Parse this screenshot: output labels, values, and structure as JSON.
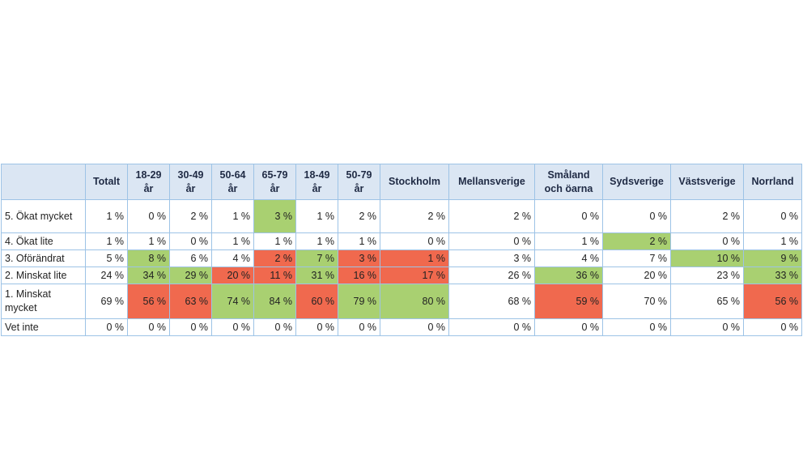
{
  "table": {
    "columns": [
      "Totalt",
      "18-29 år",
      "30-49 år",
      "50-64 år",
      "65-79 år",
      "18-49 år",
      "50-79 år",
      "Stockholm",
      "Mellansverige",
      "Småland och öarna",
      "Sydsverige",
      "Västsverige",
      "Norrland"
    ],
    "rows": [
      {
        "label": "5. Ökat mycket",
        "values": [
          "1 %",
          "0 %",
          "2 %",
          "1 %",
          "3 %",
          "1 %",
          "2 %",
          "2 %",
          "2 %",
          "0 %",
          "0 %",
          "2 %",
          "0 %"
        ],
        "highlights": [
          "",
          "",
          "",
          "",
          "green",
          "",
          "",
          "",
          "",
          "",
          "",
          "",
          ""
        ]
      },
      {
        "label": "4. Ökat lite",
        "values": [
          "1 %",
          "1 %",
          "0 %",
          "1 %",
          "1 %",
          "1 %",
          "1 %",
          "0 %",
          "0 %",
          "1 %",
          "2 %",
          "0 %",
          "1 %"
        ],
        "highlights": [
          "",
          "",
          "",
          "",
          "",
          "",
          "",
          "",
          "",
          "",
          "green",
          "",
          ""
        ]
      },
      {
        "label": "3. Oförändrat",
        "values": [
          "5 %",
          "8 %",
          "6 %",
          "4 %",
          "2 %",
          "7 %",
          "3 %",
          "1 %",
          "3 %",
          "4 %",
          "7 %",
          "10 %",
          "9 %"
        ],
        "highlights": [
          "",
          "green",
          "",
          "",
          "red",
          "green",
          "red",
          "red",
          "",
          "",
          "",
          "green",
          "green"
        ]
      },
      {
        "label": "2. Minskat lite",
        "values": [
          "24 %",
          "34 %",
          "29 %",
          "20 %",
          "11 %",
          "31 %",
          "16 %",
          "17 %",
          "26 %",
          "36 %",
          "20 %",
          "23 %",
          "33 %"
        ],
        "highlights": [
          "",
          "green",
          "green",
          "red",
          "red",
          "green",
          "red",
          "red",
          "",
          "green",
          "",
          "",
          "green"
        ]
      },
      {
        "label": "1. Minskat mycket",
        "values": [
          "69 %",
          "56 %",
          "63 %",
          "74 %",
          "84 %",
          "60 %",
          "79 %",
          "80 %",
          "68 %",
          "59 %",
          "70 %",
          "65 %",
          "56 %"
        ],
        "highlights": [
          "",
          "red",
          "red",
          "green",
          "green",
          "red",
          "green",
          "green",
          "",
          "red",
          "",
          "",
          "red"
        ]
      },
      {
        "label": "Vet inte",
        "values": [
          "0 %",
          "0 %",
          "0 %",
          "0 %",
          "0 %",
          "0 %",
          "0 %",
          "0 %",
          "0 %",
          "0 %",
          "0 %",
          "0 %",
          "0 %"
        ],
        "highlights": [
          "",
          "",
          "",
          "",
          "",
          "",
          "",
          "",
          "",
          "",
          "",
          "",
          ""
        ]
      }
    ]
  },
  "colors": {
    "header_bg": "#dbe6f3",
    "border": "#9dc3e6",
    "highlight_green": "#a9d071",
    "highlight_red": "#f0694e"
  }
}
